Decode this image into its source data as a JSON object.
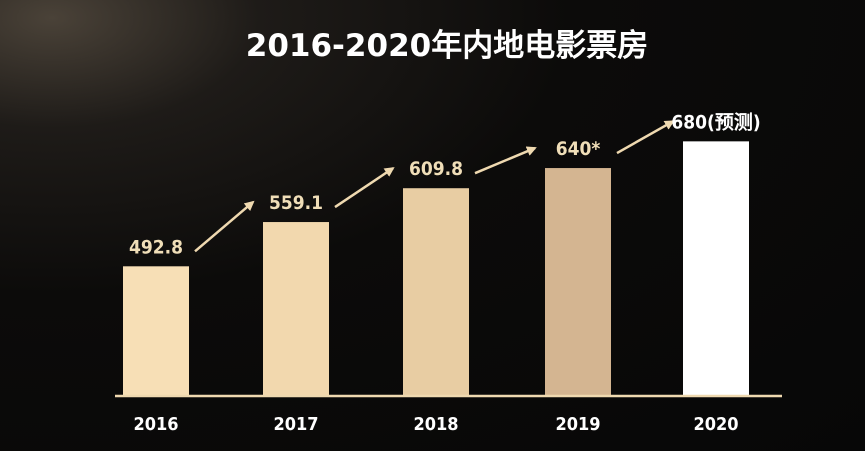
{
  "chart_data": {
    "type": "bar",
    "title": "2016-2020年内地电影票房",
    "categories": [
      "2016",
      "2017",
      "2018",
      "2019",
      "2020"
    ],
    "values": [
      492.8,
      559.1,
      609.8,
      640,
      680
    ],
    "value_labels": [
      "492.8",
      "559.1",
      "609.8",
      "640*",
      "680(预测)"
    ],
    "ylim": [
      300,
      700
    ],
    "grid": false,
    "legend": "none",
    "colors": {
      "bars": [
        "#f7dfb6",
        "#f2d8ae",
        "#e8cda3",
        "#d4b591",
        "#ffffff"
      ],
      "axis": "#efd9b0",
      "arrows": "#efd9b0",
      "label": "#f0deb8"
    }
  }
}
